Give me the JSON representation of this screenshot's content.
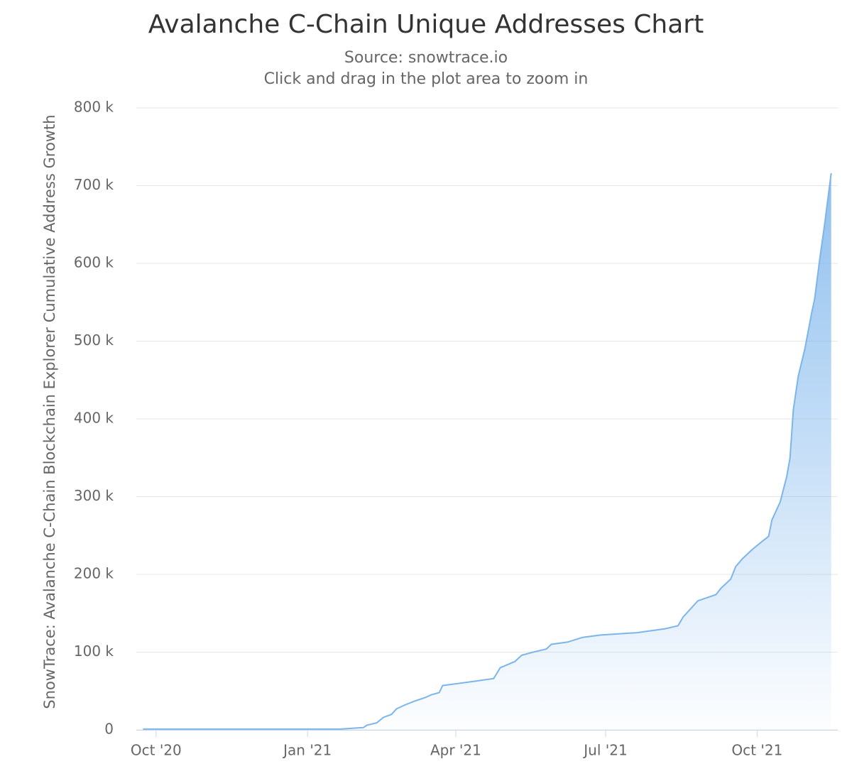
{
  "chart_data": {
    "type": "area",
    "title": "Avalanche C-Chain Unique Addresses Chart",
    "subtitle": "Source: snowtrace.io",
    "note": "Click and drag in the plot area to zoom in",
    "y_label": "SnowTrace: Avalanche C-Chain Blockchain Explorer Cumulative Address Growth",
    "color": "#7cb5ec",
    "x": [
      "2020-09-23",
      "2021-01-21",
      "2021-02-04",
      "2021-02-06",
      "2021-02-12",
      "2021-02-16",
      "2021-02-21",
      "2021-02-24",
      "2021-03-01",
      "2021-03-07",
      "2021-03-14",
      "2021-03-17",
      "2021-03-22",
      "2021-03-24",
      "2021-04-07",
      "2021-04-24",
      "2021-04-28",
      "2021-05-07",
      "2021-05-11",
      "2021-05-18",
      "2021-05-26",
      "2021-05-29",
      "2021-06-08",
      "2021-06-17",
      "2021-06-28",
      "2021-07-20",
      "2021-08-06",
      "2021-08-14",
      "2021-08-17",
      "2021-08-26",
      "2021-09-06",
      "2021-09-09",
      "2021-09-15",
      "2021-09-18",
      "2021-09-22",
      "2021-09-28",
      "2021-10-05",
      "2021-10-08",
      "2021-10-10",
      "2021-10-15",
      "2021-10-19",
      "2021-10-21",
      "2021-10-23",
      "2021-10-26",
      "2021-10-30",
      "2021-11-03",
      "2021-11-05",
      "2021-11-08",
      "2021-11-11",
      "2021-11-15"
    ],
    "values": [
      1000,
      1000,
      3000,
      6000,
      9000,
      16000,
      20000,
      27000,
      32000,
      37000,
      42000,
      45000,
      48000,
      57000,
      61000,
      66000,
      80000,
      88000,
      96000,
      100000,
      104000,
      110000,
      113000,
      119000,
      122000,
      125000,
      130000,
      134000,
      145000,
      166000,
      174000,
      182000,
      194000,
      210000,
      220000,
      232000,
      244000,
      249000,
      270000,
      293000,
      326000,
      350000,
      412000,
      455000,
      490000,
      535000,
      555000,
      605000,
      650000,
      716000
    ],
    "xlim": [
      "2020-09-19",
      "2021-11-19"
    ],
    "xticks": [
      {
        "value": "2020-10-01",
        "label": "Oct '20"
      },
      {
        "value": "2021-01-01",
        "label": "Jan '21"
      },
      {
        "value": "2021-04-01",
        "label": "Apr '21"
      },
      {
        "value": "2021-07-01",
        "label": "Jul '21"
      },
      {
        "value": "2021-10-01",
        "label": "Oct '21"
      }
    ],
    "ylim": [
      0,
      800000
    ],
    "yticks": [
      0,
      {
        "value": 100000,
        "label": "100 k"
      },
      {
        "value": 200000,
        "label": "200 k"
      },
      {
        "value": 300000,
        "label": "300 k"
      },
      {
        "value": 400000,
        "label": "400 k"
      },
      {
        "value": 500000,
        "label": "500 k"
      },
      {
        "value": 600000,
        "label": "600 k"
      },
      {
        "value": 700000,
        "label": "700 k"
      },
      {
        "value": 800000,
        "label": "800 k"
      }
    ],
    "grid": true
  }
}
